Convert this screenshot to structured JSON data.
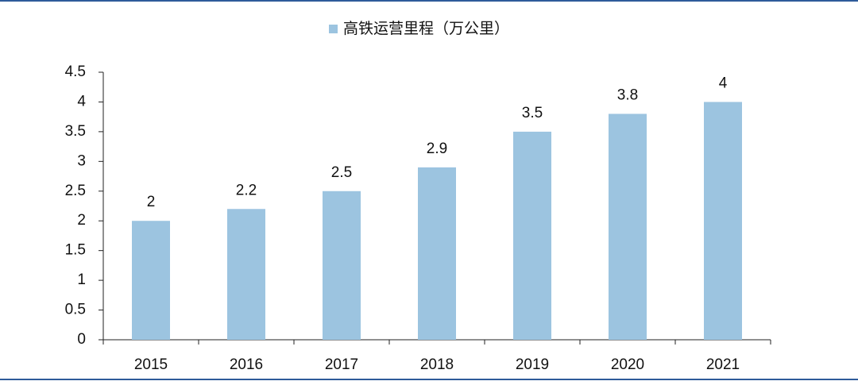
{
  "chart_data": {
    "type": "bar",
    "categories": [
      "2015",
      "2016",
      "2017",
      "2018",
      "2019",
      "2020",
      "2021"
    ],
    "series": [
      {
        "name": "高铁运营里程（万公里）",
        "color": "#9cc4e0",
        "values": [
          2,
          2.2,
          2.5,
          2.9,
          3.5,
          3.8,
          4
        ]
      }
    ],
    "ylim": [
      0,
      4.5
    ],
    "yticks": [
      0,
      0.5,
      1,
      1.5,
      2,
      2.5,
      3,
      3.5,
      4,
      4.5
    ],
    "grid": false,
    "legend": "top"
  }
}
